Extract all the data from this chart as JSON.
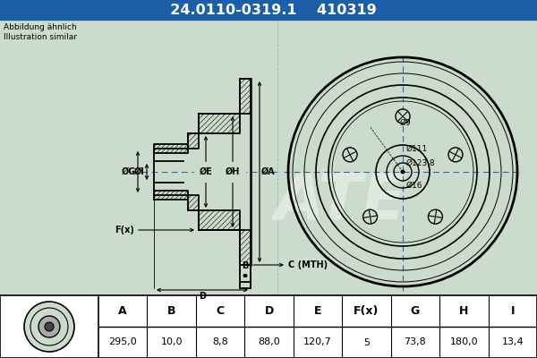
{
  "part_number": "24.0110-0319.1",
  "ref_number": "410319",
  "note_line1": "Abbildung ähnlich",
  "note_line2": "Illustration similar",
  "header_bg": "#1a5fa8",
  "header_text_color": "#ffffff",
  "bg_color": "#ccdccc",
  "table_bg": "#ffffff",
  "drawing_bg": "#ccdccc",
  "columns": [
    "A",
    "B",
    "C",
    "D",
    "E",
    "F(x)",
    "G",
    "H",
    "I"
  ],
  "values": [
    "295,0",
    "10,0",
    "8,8",
    "88,0",
    "120,7",
    "5",
    "73,8",
    "180,0",
    "13,4"
  ],
  "circle_labels": [
    "Ø16",
    "Ø123,8",
    "Ø111",
    "Ø9"
  ]
}
